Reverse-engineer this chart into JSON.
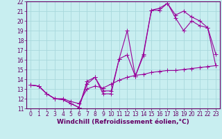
{
  "xlabel": "Windchill (Refroidissement éolien,°C)",
  "ylabel": "",
  "xlim": [
    -0.5,
    23.5
  ],
  "ylim": [
    11,
    22
  ],
  "xticks": [
    0,
    1,
    2,
    3,
    4,
    5,
    6,
    7,
    8,
    9,
    10,
    11,
    12,
    13,
    14,
    15,
    16,
    17,
    18,
    19,
    20,
    21,
    22,
    23
  ],
  "yticks": [
    11,
    12,
    13,
    14,
    15,
    16,
    17,
    18,
    19,
    20,
    21,
    22
  ],
  "background_color": "#c8eef0",
  "grid_color": "#a8d8dc",
  "line_color": "#990099",
  "line1_x": [
    0,
    1,
    2,
    3,
    4,
    5,
    6,
    7,
    8,
    9,
    10,
    11,
    12,
    13,
    14,
    15,
    16,
    17,
    18,
    19,
    20,
    21,
    22,
    23
  ],
  "line1_y": [
    13.4,
    13.3,
    12.5,
    12.0,
    11.9,
    11.5,
    11.1,
    13.8,
    14.2,
    12.5,
    12.5,
    16.1,
    19.0,
    14.3,
    16.4,
    21.1,
    21.1,
    21.8,
    20.6,
    21.0,
    20.4,
    20.0,
    19.3,
    16.6
  ],
  "line2_x": [
    0,
    1,
    2,
    3,
    4,
    5,
    6,
    7,
    8,
    9,
    10,
    11,
    12,
    13,
    14,
    15,
    16,
    17,
    18,
    19,
    20,
    21,
    22,
    23
  ],
  "line2_y": [
    13.4,
    13.3,
    12.5,
    12.0,
    11.9,
    11.5,
    11.1,
    13.5,
    14.2,
    12.8,
    12.8,
    16.1,
    16.5,
    14.3,
    16.6,
    21.1,
    21.3,
    21.8,
    20.3,
    19.0,
    20.0,
    19.5,
    19.3,
    15.4
  ],
  "line3_x": [
    0,
    1,
    2,
    3,
    4,
    5,
    6,
    7,
    8,
    9,
    10,
    11,
    12,
    13,
    14,
    15,
    16,
    17,
    18,
    19,
    20,
    21,
    22,
    23
  ],
  "line3_y": [
    13.4,
    13.3,
    12.5,
    12.0,
    12.0,
    11.7,
    11.5,
    13.0,
    13.3,
    13.1,
    13.5,
    13.9,
    14.2,
    14.4,
    14.5,
    14.7,
    14.8,
    14.9,
    14.9,
    15.0,
    15.1,
    15.2,
    15.3,
    15.4
  ],
  "font_size_tick": 5.5,
  "font_size_label": 6.5,
  "tick_color": "#660066",
  "label_color": "#660066",
  "spine_color": "#660066"
}
